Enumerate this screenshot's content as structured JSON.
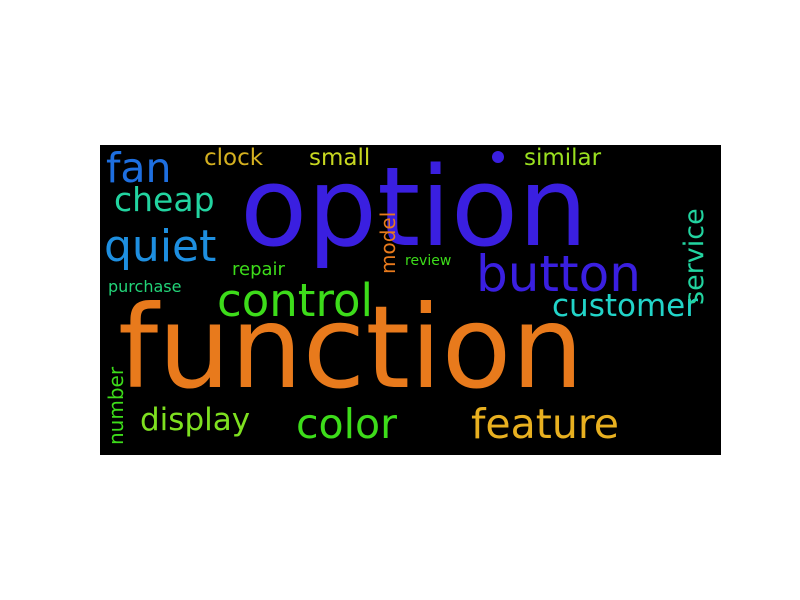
{
  "word_cloud": {
    "words": [
      {
        "text": "function",
        "color": "#e87a1c"
      },
      {
        "text": "option",
        "color": "#3a1fe0"
      },
      {
        "text": "button",
        "color": "#3a1fe0"
      },
      {
        "text": "control",
        "color": "#3ddc1a"
      },
      {
        "text": "quiet",
        "color": "#1e8fe0"
      },
      {
        "text": "fan",
        "color": "#1e6fe0"
      },
      {
        "text": "color",
        "color": "#3ddc1a"
      },
      {
        "text": "feature",
        "color": "#e8b020"
      },
      {
        "text": "cheap",
        "color": "#22d4a0"
      },
      {
        "text": "customer",
        "color": "#22d4c8"
      },
      {
        "text": "display",
        "color": "#7ee020"
      },
      {
        "text": "clock",
        "color": "#d4b020"
      },
      {
        "text": "small",
        "color": "#c8d820"
      },
      {
        "text": "similar",
        "color": "#9ae020"
      },
      {
        "text": "service",
        "color": "#22d4a0"
      },
      {
        "text": "model",
        "color": "#e87a1c"
      },
      {
        "text": "number",
        "color": "#3ddc1a"
      },
      {
        "text": "repair",
        "color": "#3ddc1a"
      },
      {
        "text": "review",
        "color": "#3ddc1a"
      },
      {
        "text": "purchase",
        "color": "#22d478"
      }
    ],
    "dot_color": "#3a1fe0",
    "background": "#000000"
  }
}
